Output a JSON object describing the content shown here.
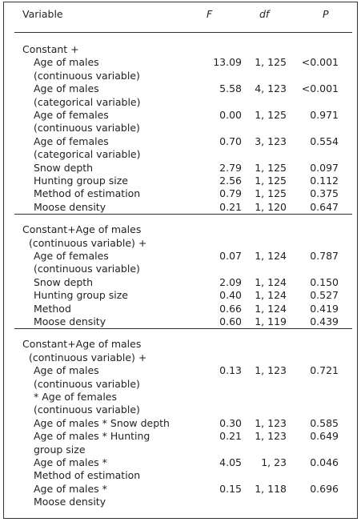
{
  "header": {
    "variable": "Variable",
    "f": "F",
    "df": "df",
    "p": "P"
  },
  "sections": [
    {
      "heading": [
        "Constant +"
      ],
      "rows": [
        {
          "variable": [
            "Age of males",
            "(continuous variable)"
          ],
          "f": "13.09",
          "df": "1, 125",
          "p": "<0.001"
        },
        {
          "variable": [
            "Age of males",
            "(categorical variable)"
          ],
          "f": "5.58",
          "df": "4, 123",
          "p": "<0.001"
        },
        {
          "variable": [
            "Age of females",
            "(continuous variable)"
          ],
          "f": "0.00",
          "df": "1, 125",
          "p": "0.971"
        },
        {
          "variable": [
            "Age of females",
            "(categorical variable)"
          ],
          "f": "0.70",
          "df": "3, 123",
          "p": "0.554"
        },
        {
          "variable": [
            "Snow depth"
          ],
          "f": "2.79",
          "df": "1, 125",
          "p": "0.097"
        },
        {
          "variable": [
            "Hunting group size"
          ],
          "f": "2.56",
          "df": "1, 125",
          "p": "0.112"
        },
        {
          "variable": [
            "Method of estimation"
          ],
          "f": "0.79",
          "df": "1, 125",
          "p": "0.375"
        },
        {
          "variable": [
            "Moose density"
          ],
          "f": "0.21",
          "df": "1, 120",
          "p": "0.647"
        }
      ]
    },
    {
      "heading": [
        "Constant+Age of males",
        "(continuous variable) +"
      ],
      "rows": [
        {
          "variable": [
            "Age of females",
            "(continuous variable)"
          ],
          "f": "0.07",
          "df": "1, 124",
          "p": "0.787"
        },
        {
          "variable": [
            "Snow depth"
          ],
          "f": "2.09",
          "df": "1, 124",
          "p": "0.150"
        },
        {
          "variable": [
            "Hunting group size"
          ],
          "f": "0.40",
          "df": "1, 124",
          "p": "0.527"
        },
        {
          "variable": [
            "Method"
          ],
          "f": "0.66",
          "df": "1, 124",
          "p": "0.419"
        },
        {
          "variable": [
            "Moose density"
          ],
          "f": "0.60",
          "df": "1, 119",
          "p": "0.439"
        }
      ]
    },
    {
      "heading": [
        "Constant+Age of males",
        "(continuous variable) +"
      ],
      "rows": [
        {
          "variable": [
            "Age of males",
            "(continuous variable)",
            "* Age of females",
            "(continuous variable)"
          ],
          "f": "0.13",
          "df": "1, 123",
          "p": "0.721"
        },
        {
          "variable": [
            "Age of males * Snow depth"
          ],
          "f": "0.30",
          "df": "1, 123",
          "p": "0.585"
        },
        {
          "variable": [
            "Age of males * Hunting",
            "group size"
          ],
          "f": "0.21",
          "df": "1, 123",
          "p": "0.649"
        },
        {
          "variable": [
            "Age of males *",
            "Method of estimation"
          ],
          "f": "4.05",
          "df": "1, 23",
          "p": "0.046"
        },
        {
          "variable": [
            "Age of males *",
            "Moose density"
          ],
          "f": "0.15",
          "df": "1, 118",
          "p": "0.696"
        }
      ]
    }
  ]
}
